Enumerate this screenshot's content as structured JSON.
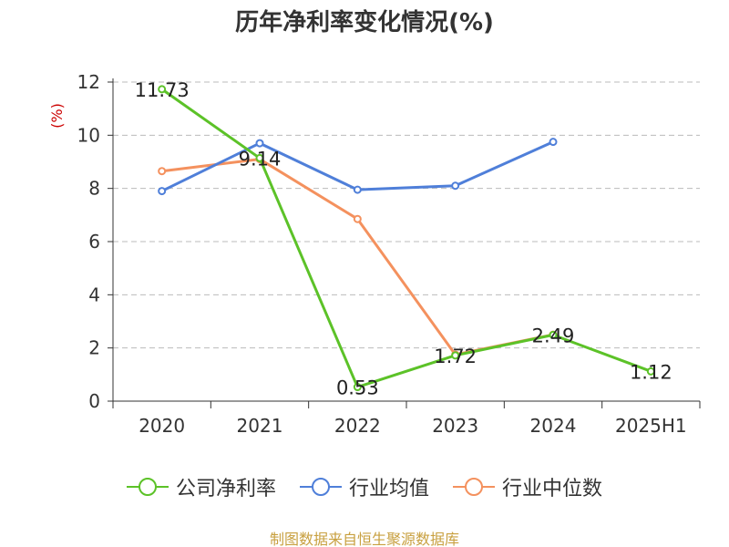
{
  "chart_data": {
    "type": "line",
    "title": "历年净利率变化情况(%)",
    "ylabel": "(%)",
    "xlabel": "",
    "categories": [
      "2020",
      "2021",
      "2022",
      "2023",
      "2024",
      "2025H1"
    ],
    "ylim": [
      0,
      12
    ],
    "yticks": [
      0,
      2,
      4,
      6,
      8,
      10,
      12
    ],
    "grid": true,
    "legend_position": "bottom",
    "series": [
      {
        "name": "公司净利率",
        "color": "#5cc228",
        "values": [
          11.73,
          9.14,
          0.53,
          1.72,
          2.49,
          1.12
        ],
        "labels": [
          "11.73",
          "9.14",
          "0.53",
          "1.72",
          "2.49",
          "1.12"
        ]
      },
      {
        "name": "行业均值",
        "color": "#4f7fd9",
        "values": [
          7.9,
          9.7,
          7.95,
          8.1,
          9.75,
          null
        ]
      },
      {
        "name": "行业中位数",
        "color": "#f4915e",
        "values": [
          8.65,
          9.1,
          6.85,
          1.75,
          2.5,
          null
        ]
      }
    ]
  },
  "footer": {
    "source": "制图数据来自恒生聚源数据库"
  }
}
